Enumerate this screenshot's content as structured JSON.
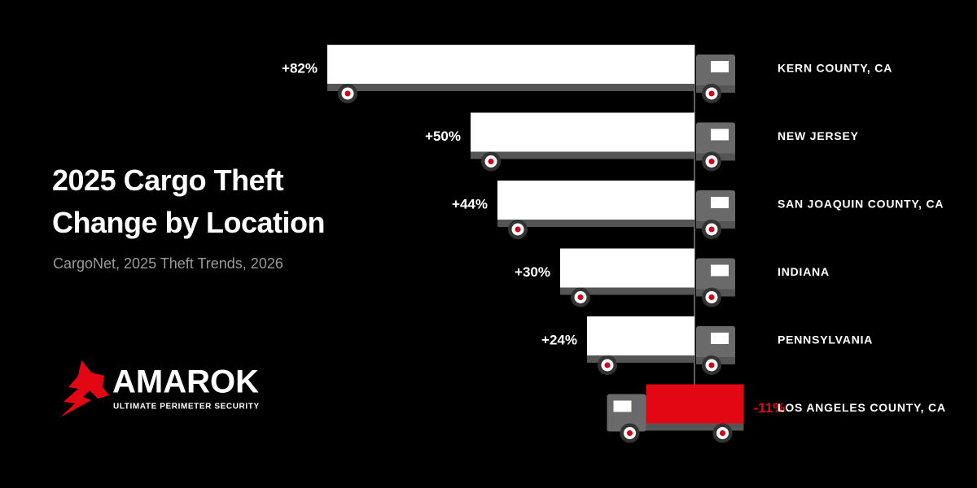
{
  "chart_data": {
    "type": "truckbar",
    "title": "2025 Cargo Theft Change by Location",
    "subtitle": "CargoNet, 2025 Theft Trends, 2026",
    "categories": [
      "KERN COUNTY, CA",
      "NEW JERSEY",
      "SAN JOAQUIN COUNTY, CA",
      "INDIANA",
      "PENNSYLVANIA",
      "LOS ANGELES COUNTY, CA"
    ],
    "values": [
      82,
      50,
      44,
      30,
      24,
      -11
    ],
    "value_labels": [
      "+82%",
      "+50%",
      "+44%",
      "+30%",
      "+24%",
      "-11%"
    ],
    "color": "#ffffff",
    "negative_color": "#e30613"
  },
  "brand": {
    "name": "AMAROK",
    "tagline": "ULTIMATE PERIMETER SECURITY"
  }
}
